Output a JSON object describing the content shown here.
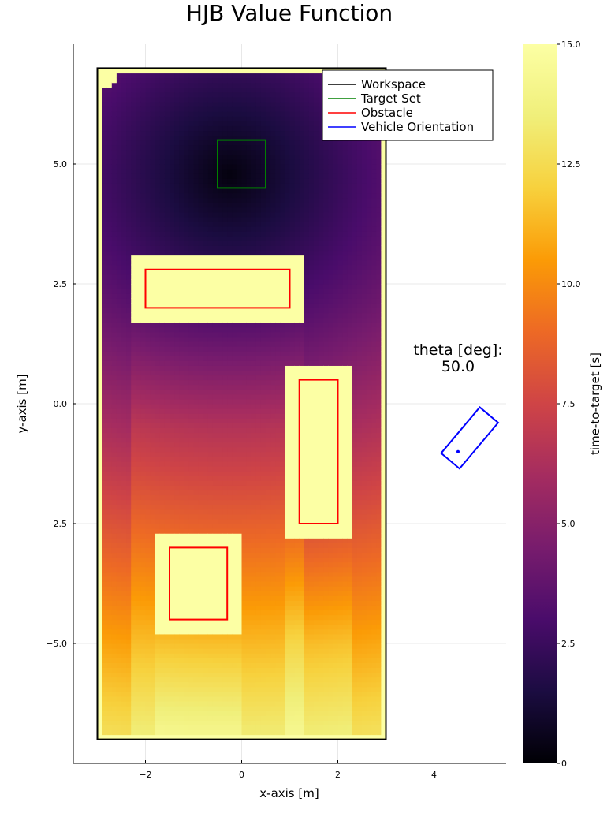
{
  "chart_data": {
    "type": "heatmap",
    "title": "HJB Value Function",
    "xlabel": "x-axis [m]",
    "ylabel": "y-axis [m]",
    "xlim": [
      -3.5,
      5.5
    ],
    "ylim": [
      -7.5,
      7.5
    ],
    "xticks": [
      -2,
      0,
      2,
      4
    ],
    "xtick_labels": [
      "−2",
      "0",
      "2",
      "4"
    ],
    "yticks": [
      -5,
      -2.5,
      0,
      2.5,
      5
    ],
    "ytick_labels": [
      "−5.0",
      "−2.5",
      "0.0",
      "2.5",
      "5.0"
    ],
    "grid": true,
    "legend_position": "top-right",
    "colorbar": {
      "label": "time-to-target [s]",
      "range": [
        0,
        15
      ],
      "ticks": [
        0,
        2.5,
        5,
        7.5,
        10,
        12.5,
        15
      ],
      "tick_labels": [
        "0",
        "2.5",
        "5.0",
        "7.5",
        "10.0",
        "12.5",
        "15.0"
      ],
      "colormap": "inferno"
    },
    "heatmap": {
      "x_range": [
        -3,
        3
      ],
      "y_range": [
        -7,
        7
      ],
      "cells": [
        60,
        140
      ],
      "value_max": 15,
      "target_center": [
        -0.25,
        4.8
      ]
    },
    "series": [
      {
        "name": "Workspace",
        "color": "#000000",
        "x_range": [
          -3,
          3
        ],
        "y_range": [
          -7,
          7
        ]
      },
      {
        "name": "Target Set",
        "color": "#008000",
        "x_range": [
          -0.5,
          0.5
        ],
        "y_range": [
          4.5,
          5.5
        ]
      },
      {
        "name": "Obstacle",
        "color": "#ff0000",
        "rects": [
          {
            "x_range": [
              -2,
              1
            ],
            "y_range": [
              2,
              2.8
            ]
          },
          {
            "x_range": [
              1.2,
              2
            ],
            "y_range": [
              -2.5,
              0.5
            ]
          },
          {
            "x_range": [
              -1.5,
              -0.3
            ],
            "y_range": [
              -4.5,
              -3
            ]
          }
        ]
      },
      {
        "name": "Vehicle Orientation",
        "color": "#0000ff",
        "center": [
          4.5,
          -1.0
        ],
        "angle_deg": 50,
        "length": 1.0,
        "width": 0.5
      }
    ],
    "annotation": {
      "line1": "theta [deg]:",
      "line2": "50.0",
      "x": 4.5,
      "y": 0.9
    }
  }
}
